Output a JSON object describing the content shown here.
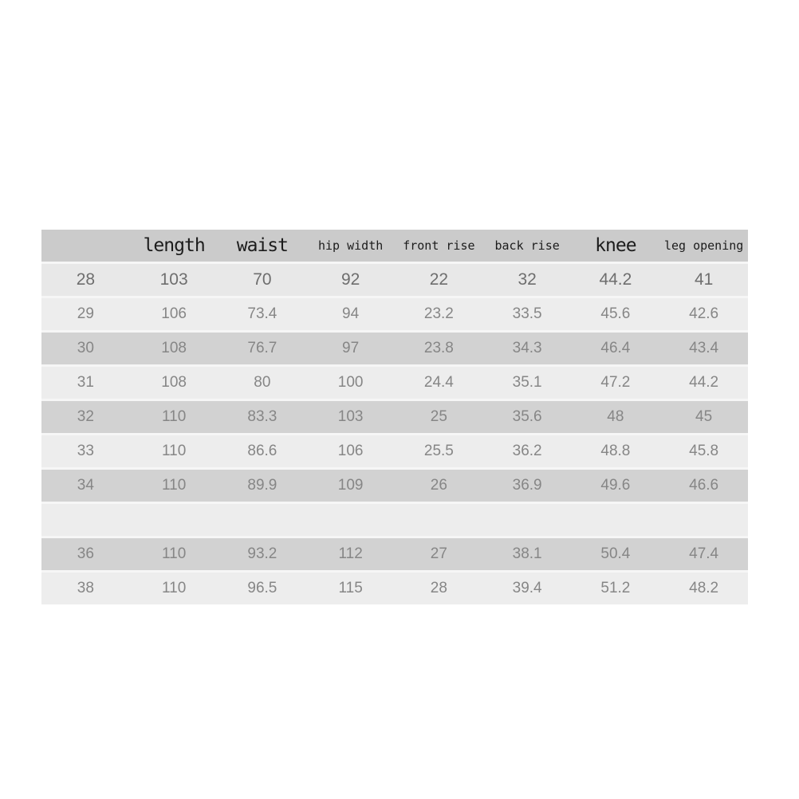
{
  "chart_data": {
    "type": "table",
    "title": "",
    "columns": [
      {
        "label": "",
        "style": "large",
        "name": "size"
      },
      {
        "label": "length",
        "style": "large",
        "name": "length"
      },
      {
        "label": "waist",
        "style": "large",
        "name": "waist"
      },
      {
        "label": "hip width",
        "style": "small",
        "name": "hip-width"
      },
      {
        "label": "front rise",
        "style": "small",
        "name": "front-rise"
      },
      {
        "label": "back rise",
        "style": "small",
        "name": "back-rise"
      },
      {
        "label": "knee",
        "style": "large",
        "name": "knee"
      },
      {
        "label": "leg opening",
        "style": "small",
        "name": "leg-opening"
      }
    ],
    "rows": [
      {
        "shade": "first",
        "cells": [
          "28",
          "103",
          "70",
          "92",
          "22",
          "32",
          "44.2",
          "41"
        ]
      },
      {
        "shade": "light",
        "cells": [
          "29",
          "106",
          "73.4",
          "94",
          "23.2",
          "33.5",
          "45.6",
          "42.6"
        ]
      },
      {
        "shade": "dark",
        "cells": [
          "30",
          "108",
          "76.7",
          "97",
          "23.8",
          "34.3",
          "46.4",
          "43.4"
        ]
      },
      {
        "shade": "light",
        "cells": [
          "31",
          "108",
          "80",
          "100",
          "24.4",
          "35.1",
          "47.2",
          "44.2"
        ]
      },
      {
        "shade": "dark",
        "cells": [
          "32",
          "110",
          "83.3",
          "103",
          "25",
          "35.6",
          "48",
          "45"
        ]
      },
      {
        "shade": "light",
        "cells": [
          "33",
          "110",
          "86.6",
          "106",
          "25.5",
          "36.2",
          "48.8",
          "45.8"
        ]
      },
      {
        "shade": "dark",
        "cells": [
          "34",
          "110",
          "89.9",
          "109",
          "26",
          "36.9",
          "49.6",
          "46.6"
        ]
      },
      {
        "shade": "light",
        "cells": [
          "",
          "",
          "",
          "",
          "",
          "",
          "",
          ""
        ]
      },
      {
        "shade": "dark",
        "cells": [
          "36",
          "110",
          "93.2",
          "112",
          "27",
          "38.1",
          "50.4",
          "47.4"
        ]
      },
      {
        "shade": "light",
        "cells": [
          "38",
          "110",
          "96.5",
          "115",
          "28",
          "39.4",
          "51.2",
          "48.2"
        ]
      }
    ]
  },
  "colors": {
    "page_bg": "#ffffff",
    "header_bg": "#cbcbcb",
    "header_text": "#1c1c1c",
    "row_dark_bg": "#d2d2d2",
    "row_light_bg": "#ededed",
    "row_first_bg": "#e8e8e8",
    "cell_text": "#868686",
    "first_row_text": "#6e6e6e",
    "separator": "#f6f6f6"
  }
}
